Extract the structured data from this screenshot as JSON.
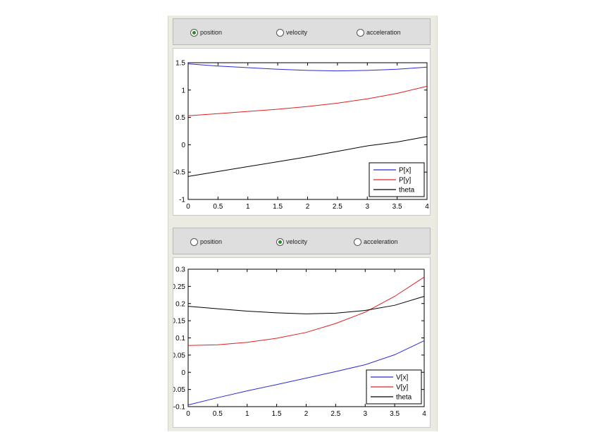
{
  "panels": [
    {
      "radio_options": [
        {
          "label": "position",
          "selected": true
        },
        {
          "label": "velocity",
          "selected": false
        },
        {
          "label": "acceleration",
          "selected": false
        }
      ]
    },
    {
      "radio_options": [
        {
          "label": "position",
          "selected": false
        },
        {
          "label": "velocity",
          "selected": true
        },
        {
          "label": "acceleration",
          "selected": false
        }
      ]
    }
  ],
  "chart_data": [
    {
      "type": "line",
      "title": "",
      "xlabel": "",
      "ylabel": "",
      "xlim": [
        0,
        4
      ],
      "ylim": [
        -1,
        1.5
      ],
      "xticks": [
        "0",
        "0.5",
        "1",
        "1.5",
        "2",
        "2.5",
        "3",
        "3.5",
        "4"
      ],
      "yticks": [
        "-1",
        "-0.5",
        "0",
        "0.5",
        "1",
        "1.5"
      ],
      "x": [
        0,
        0.5,
        1,
        1.5,
        2,
        2.5,
        3,
        3.5,
        4
      ],
      "series": [
        {
          "name": "P[x]",
          "color": "#2b2bd6",
          "values": [
            1.48,
            1.44,
            1.41,
            1.38,
            1.36,
            1.35,
            1.36,
            1.38,
            1.42
          ]
        },
        {
          "name": "P[y]",
          "color": "#e02020",
          "values": [
            0.53,
            0.57,
            0.61,
            0.65,
            0.7,
            0.76,
            0.84,
            0.94,
            1.07
          ]
        },
        {
          "name": "theta",
          "color": "#000000",
          "values": [
            -0.58,
            -0.49,
            -0.4,
            -0.31,
            -0.22,
            -0.12,
            -0.02,
            0.05,
            0.15
          ]
        }
      ],
      "legend": "bottom-right"
    },
    {
      "type": "line",
      "title": "",
      "xlabel": "",
      "ylabel": "",
      "xlim": [
        0,
        4
      ],
      "ylim": [
        -0.1,
        0.3
      ],
      "xticks": [
        "0",
        "0.5",
        "1",
        "1.5",
        "2",
        "2.5",
        "3",
        "3.5",
        "4"
      ],
      "yticks": [
        "-0.1",
        "-0.05",
        "0",
        "0.05",
        "0.1",
        "0.15",
        "0.2",
        "0.25",
        "0.3"
      ],
      "x": [
        0,
        0.5,
        1,
        1.5,
        2,
        2.5,
        3,
        3.5,
        4
      ],
      "series": [
        {
          "name": "V[x]",
          "color": "#2b2bd6",
          "values": [
            -0.095,
            -0.074,
            -0.054,
            -0.036,
            -0.017,
            0.002,
            0.022,
            0.051,
            0.092
          ]
        },
        {
          "name": "V[y]",
          "color": "#e02020",
          "values": [
            0.078,
            0.08,
            0.087,
            0.099,
            0.116,
            0.142,
            0.175,
            0.221,
            0.277
          ]
        },
        {
          "name": "theta",
          "color": "#000000",
          "values": [
            0.192,
            0.185,
            0.178,
            0.173,
            0.17,
            0.172,
            0.18,
            0.195,
            0.221
          ]
        }
      ],
      "legend": "bottom-right"
    }
  ]
}
